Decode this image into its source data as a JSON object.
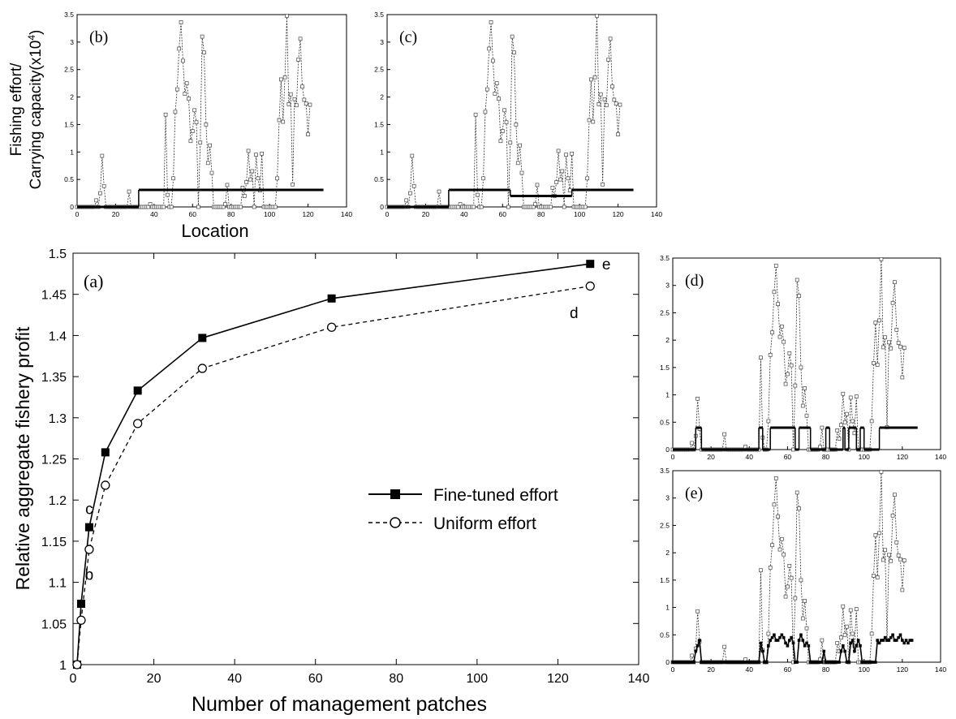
{
  "shared": {
    "y_axis_label_line1": "Fishing effort/",
    "y_axis_label_line2": "Carrying capacity(x10",
    "y_axis_label_sup": "4",
    "y_axis_label_close": ")",
    "x_axis_label_small": "Location"
  },
  "chart_data": [
    {
      "id": "a",
      "type": "line",
      "panel_label": "(a)",
      "xlabel": "Number of management patches",
      "ylabel": "Relative aggregate fishery profit",
      "xlim": [
        0,
        140
      ],
      "ylim": [
        1,
        1.5
      ],
      "x_ticks": [
        0,
        20,
        40,
        60,
        80,
        100,
        120,
        140
      ],
      "y_ticks": [
        1,
        1.05,
        1.1,
        1.15,
        1.2,
        1.25,
        1.3,
        1.35,
        1.4,
        1.45,
        1.5
      ],
      "legend_position": "center-right",
      "series": [
        {
          "name": "Fine-tuned effort",
          "marker": "filled-square",
          "line": "solid",
          "x": [
            1,
            2,
            4,
            8,
            16,
            32,
            64,
            128
          ],
          "y": [
            1.0,
            1.074,
            1.167,
            1.258,
            1.333,
            1.397,
            1.445,
            1.487
          ]
        },
        {
          "name": "Uniform effort",
          "marker": "open-circle",
          "line": "dashed",
          "x": [
            1,
            2,
            4,
            8,
            16,
            32,
            64,
            128
          ],
          "y": [
            1.0,
            1.054,
            1.14,
            1.218,
            1.293,
            1.36,
            1.41,
            1.46
          ]
        }
      ],
      "annotations": [
        {
          "text": "c",
          "x": 4,
          "y": 1.19
        },
        {
          "text": "b",
          "x": 4,
          "y": 1.11
        },
        {
          "text": "d",
          "x": 124,
          "y": 1.428
        },
        {
          "text": "e",
          "x": 132,
          "y": 1.487
        }
      ]
    },
    {
      "id": "b",
      "panel_label": "(b)",
      "type": "line",
      "xlim": [
        0,
        140
      ],
      "ylim": [
        0,
        3.5
      ],
      "x_ticks": [
        0,
        20,
        40,
        60,
        80,
        100,
        120,
        140
      ],
      "y_ticks": [
        0,
        0.5,
        1,
        1.5,
        2,
        2.5,
        3,
        3.5
      ],
      "effort_segments": [
        [
          0,
          32,
          0.0
        ],
        [
          32,
          128,
          0.31
        ]
      ]
    },
    {
      "id": "c",
      "panel_label": "(c)",
      "type": "line",
      "xlim": [
        0,
        140
      ],
      "ylim": [
        0,
        3.5
      ],
      "x_ticks": [
        0,
        20,
        40,
        60,
        80,
        100,
        120,
        140
      ],
      "y_ticks": [
        0,
        0.5,
        1,
        1.5,
        2,
        2.5,
        3,
        3.5
      ],
      "effort_segments": [
        [
          0,
          32,
          0.0
        ],
        [
          32,
          64,
          0.31
        ],
        [
          64,
          96,
          0.2
        ],
        [
          96,
          128,
          0.31
        ]
      ]
    },
    {
      "id": "d",
      "panel_label": "(d)",
      "type": "line",
      "xlim": [
        0,
        140
      ],
      "ylim": [
        0,
        3.5
      ],
      "x_ticks": [
        0,
        20,
        40,
        60,
        80,
        100,
        120,
        140
      ],
      "y_ticks": [
        0,
        0.5,
        1,
        1.5,
        2,
        2.5,
        3,
        3.5
      ],
      "effort_segments": [
        [
          0,
          12,
          0.0
        ],
        [
          12,
          15,
          0.4
        ],
        [
          15,
          45,
          0.0
        ],
        [
          45,
          47,
          0.4
        ],
        [
          47,
          51,
          0.0
        ],
        [
          51,
          64,
          0.4
        ],
        [
          64,
          66,
          0.0
        ],
        [
          66,
          72,
          0.4
        ],
        [
          72,
          80,
          0.0
        ],
        [
          80,
          82,
          0.4
        ],
        [
          82,
          89,
          0.0
        ],
        [
          89,
          90,
          0.4
        ],
        [
          90,
          92,
          0.0
        ],
        [
          92,
          96,
          0.4
        ],
        [
          96,
          98,
          0.0
        ],
        [
          98,
          100,
          0.4
        ],
        [
          100,
          108,
          0.0
        ],
        [
          108,
          128,
          0.4
        ]
      ]
    },
    {
      "id": "e",
      "panel_label": "(e)",
      "type": "line",
      "xlim": [
        0,
        140
      ],
      "ylim": [
        0,
        3.5
      ],
      "x_ticks": [
        0,
        20,
        40,
        60,
        80,
        100,
        120,
        140
      ],
      "y_ticks": [
        0,
        0.5,
        1,
        1.5,
        2,
        2.5,
        3,
        3.5
      ],
      "effort_series": [
        0,
        0,
        0,
        0,
        0,
        0,
        0,
        0,
        0,
        0,
        0,
        0,
        0.2,
        0.3,
        0.4,
        0,
        0,
        0,
        0,
        0,
        0,
        0,
        0,
        0,
        0,
        0,
        0,
        0,
        0,
        0,
        0,
        0,
        0,
        0,
        0,
        0,
        0,
        0,
        0,
        0,
        0,
        0,
        0,
        0,
        0,
        0,
        0.35,
        0.2,
        0,
        0,
        0.3,
        0.4,
        0.45,
        0.5,
        0.4,
        0.4,
        0.45,
        0.5,
        0.45,
        0.35,
        0.3,
        0.4,
        0.45,
        0.35,
        0,
        0,
        0.4,
        0.5,
        0.4,
        0.3,
        0.35,
        0.3,
        0,
        0,
        0,
        0,
        0,
        0,
        0,
        0.2,
        0,
        0,
        0,
        0,
        0,
        0,
        0,
        0,
        0.2,
        0.3,
        0.2,
        0,
        0,
        0.35,
        0.4,
        0.2,
        0.3,
        0.4,
        0.3,
        0,
        0,
        0,
        0,
        0,
        0,
        0,
        0,
        0.4,
        0.35,
        0.4,
        0.4,
        0.45,
        0.4,
        0.4,
        0.45,
        0.5,
        0.4,
        0.4,
        0.45,
        0.5,
        0.4,
        0.35,
        0.4,
        0.35,
        0.4,
        0.4
      ]
    }
  ],
  "habitat_profile": {
    "description_x": "location index 0-127",
    "values": [
      0,
      0,
      0,
      0,
      0,
      0,
      0,
      0,
      0,
      0,
      0.12,
      0,
      0.25,
      0.93,
      0.38,
      0,
      0,
      0,
      0,
      0,
      0,
      0,
      0,
      0,
      0,
      0,
      0,
      0.28,
      0,
      0,
      0,
      0,
      0,
      0,
      0,
      0,
      0,
      0,
      0.05,
      0,
      0,
      0,
      0,
      0,
      0,
      0,
      1.68,
      0.22,
      0,
      0,
      0.52,
      1.73,
      2.14,
      2.88,
      3.36,
      2.66,
      2.06,
      2.25,
      1.97,
      1.2,
      1.38,
      1.76,
      1.54,
      0,
      1.17,
      3.1,
      2.81,
      1.5,
      0.8,
      1.12,
      0.62,
      0,
      0,
      0,
      0,
      0,
      0,
      0.05,
      0.4,
      0,
      0,
      0,
      0,
      0,
      0,
      0,
      0.35,
      0.2,
      0.45,
      1.02,
      0.5,
      0.65,
      0,
      0.95,
      0.52,
      0.3,
      0.97,
      0,
      0,
      0,
      0,
      0,
      0,
      0,
      0.52,
      1.58,
      2.32,
      1.55,
      2.36,
      3.48,
      1.87,
      2.05,
      0.41,
      1.96,
      1.85,
      2.68,
      3.06,
      2.19,
      1.95,
      1.88,
      1.32,
      1.86
    ]
  }
}
